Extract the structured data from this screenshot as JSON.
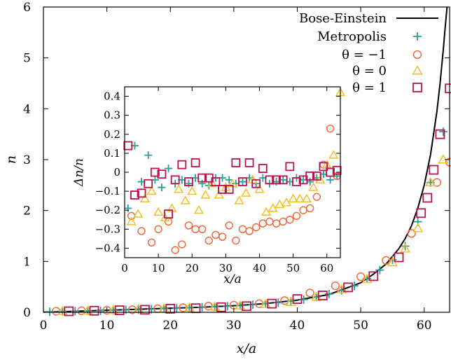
{
  "chart_data": [
    {
      "id": "main",
      "type": "scatter",
      "xlabel": "x/a",
      "ylabel": "n",
      "xlim": [
        0,
        64
      ],
      "ylim": [
        0,
        6
      ],
      "xticks": [
        0,
        10,
        20,
        30,
        40,
        50,
        60
      ],
      "yticks": [
        0,
        1,
        2,
        3,
        4,
        5,
        6
      ],
      "legend_position": "top-right",
      "legend": [
        {
          "label": "Bose-Einstein",
          "symbol": "line"
        },
        {
          "label": "Metropolis",
          "symbol": "plus"
        },
        {
          "label": "θ = −1",
          "symbol": "circle"
        },
        {
          "label": "θ = 0",
          "symbol": "triangle"
        },
        {
          "label": "θ = 1",
          "symbol": "square"
        }
      ],
      "series": [
        {
          "name": "Bose-Einstein",
          "kind": "line",
          "color": "#000000",
          "x": [
            0,
            5,
            10,
            15,
            20,
            25,
            30,
            35,
            40,
            45,
            50,
            52,
            54,
            56,
            57,
            58,
            59,
            60,
            61,
            62,
            62.5,
            63,
            63.3,
            63.6
          ],
          "y": [
            0.0,
            0.02,
            0.04,
            0.06,
            0.08,
            0.1,
            0.13,
            0.17,
            0.24,
            0.35,
            0.58,
            0.75,
            0.95,
            1.25,
            1.45,
            1.7,
            2.05,
            2.5,
            3.1,
            3.95,
            4.5,
            5.15,
            5.6,
            6.0
          ]
        },
        {
          "name": "Metropolis",
          "kind": "plus",
          "color": "#2a9d9a",
          "x": [
            1,
            3,
            5,
            7,
            9,
            11,
            13,
            15,
            17,
            19,
            21,
            23,
            25,
            27,
            29,
            31,
            33,
            35,
            37,
            39,
            41,
            43,
            45,
            47,
            49,
            51,
            53,
            55,
            57,
            59,
            61,
            63
          ],
          "y": [
            0.01,
            0.02,
            0.02,
            0.03,
            0.03,
            0.04,
            0.05,
            0.05,
            0.06,
            0.07,
            0.08,
            0.09,
            0.1,
            0.11,
            0.12,
            0.13,
            0.15,
            0.17,
            0.19,
            0.22,
            0.25,
            0.3,
            0.36,
            0.43,
            0.52,
            0.66,
            0.83,
            1.03,
            1.3,
            1.78,
            2.55,
            3.55
          ]
        },
        {
          "name": "θ = −1",
          "kind": "circle",
          "color": "#f26a3d",
          "x": [
            2,
            6,
            10,
            14,
            18,
            22,
            26,
            30,
            34,
            38,
            42,
            46,
            50,
            54,
            58,
            62,
            64
          ],
          "y": [
            0.02,
            0.03,
            0.04,
            0.05,
            0.07,
            0.09,
            0.12,
            0.14,
            0.17,
            0.23,
            0.38,
            0.52,
            0.7,
            1.02,
            1.55,
            2.55,
            2.95
          ]
        },
        {
          "name": "θ = 0",
          "kind": "triangle",
          "color": "#f2bf26",
          "x": [
            3,
            7,
            11,
            15,
            19,
            23,
            27,
            31,
            35,
            39,
            43,
            47,
            51,
            55,
            57,
            59,
            61,
            63
          ],
          "y": [
            0.02,
            0.03,
            0.04,
            0.06,
            0.07,
            0.09,
            0.11,
            0.13,
            0.16,
            0.2,
            0.3,
            0.45,
            0.65,
            0.98,
            1.25,
            1.65,
            2.55,
            3.0
          ]
        },
        {
          "name": "θ = 1",
          "kind": "square",
          "color": "#b8144d",
          "x": [
            4,
            8,
            12,
            16,
            20,
            24,
            28,
            32,
            36,
            40,
            44,
            48,
            52,
            56,
            59.5,
            60.5,
            61.5,
            62.5,
            64
          ],
          "y": [
            0.02,
            0.03,
            0.04,
            0.05,
            0.07,
            0.08,
            0.1,
            0.12,
            0.17,
            0.26,
            0.33,
            0.49,
            0.71,
            1.08,
            1.95,
            2.25,
            2.8,
            3.5,
            4.4
          ]
        }
      ]
    },
    {
      "id": "inset",
      "type": "scatter",
      "xlabel": "x/a",
      "ylabel": "Δn/n",
      "xlim": [
        0,
        64
      ],
      "ylim": [
        -0.45,
        0.45
      ],
      "xticks": [
        0,
        10,
        20,
        30,
        40,
        50,
        60
      ],
      "yticks": [
        -0.4,
        -0.3,
        -0.2,
        -0.1,
        0,
        0.1,
        0.2,
        0.3,
        0.4
      ],
      "ytick_labels": [
        "−0.4",
        "−0.3",
        "−0.2",
        "−0.1",
        "0",
        "0.1",
        "0.2",
        "0.3",
        "0.4"
      ],
      "series": [
        {
          "name": "Metropolis",
          "kind": "plus",
          "color": "#2a9d9a",
          "x": [
            1,
            3,
            5,
            7,
            9,
            11,
            13,
            15,
            17,
            19,
            21,
            23,
            25,
            27,
            29,
            31,
            33,
            35,
            37,
            39,
            41,
            43,
            45,
            47,
            49,
            51,
            53,
            55,
            57,
            59,
            61,
            63
          ],
          "y": [
            -0.19,
            0.14,
            -0.05,
            0.09,
            -0.04,
            -0.08,
            0.02,
            -0.06,
            -0.04,
            -0.06,
            -0.03,
            -0.06,
            -0.07,
            -0.03,
            -0.03,
            -0.04,
            -0.06,
            -0.05,
            -0.03,
            -0.06,
            -0.03,
            -0.06,
            -0.05,
            -0.04,
            -0.05,
            -0.03,
            -0.04,
            -0.05,
            -0.03,
            -0.01,
            -0.04,
            -0.02
          ]
        },
        {
          "name": "θ = −1",
          "kind": "circle",
          "color": "#f26a3d",
          "x": [
            2,
            5,
            8,
            10,
            13,
            15,
            17,
            19,
            21,
            23,
            25,
            27,
            29,
            31,
            33,
            35,
            37,
            39,
            41,
            43,
            45,
            47,
            49,
            51,
            53,
            55,
            57,
            59,
            61,
            63
          ],
          "y": [
            -0.23,
            -0.31,
            -0.37,
            -0.3,
            -0.26,
            -0.41,
            -0.38,
            -0.28,
            -0.3,
            -0.3,
            -0.36,
            -0.33,
            -0.34,
            -0.28,
            -0.36,
            -0.3,
            -0.31,
            -0.29,
            -0.27,
            -0.26,
            -0.27,
            -0.26,
            -0.25,
            -0.23,
            -0.2,
            -0.19,
            -0.13,
            0.04,
            0.23,
            -0.02
          ]
        },
        {
          "name": "θ = 0",
          "kind": "triangle",
          "color": "#f2bf26",
          "x": [
            2,
            4,
            6,
            8,
            10,
            12,
            14,
            16,
            18,
            20,
            22,
            24,
            26,
            28,
            30,
            32,
            34,
            36,
            38,
            40,
            42,
            44,
            46,
            48,
            50,
            52,
            54,
            56,
            58,
            60,
            62,
            64
          ],
          "y": [
            -0.26,
            -0.22,
            -0.14,
            -0.1,
            -0.21,
            -0.24,
            -0.19,
            -0.09,
            -0.15,
            -0.1,
            -0.2,
            -0.12,
            -0.06,
            -0.12,
            -0.08,
            -0.06,
            -0.15,
            -0.11,
            -0.04,
            -0.09,
            -0.21,
            -0.19,
            -0.17,
            -0.16,
            -0.14,
            -0.14,
            -0.14,
            -0.08,
            -0.04,
            0.04,
            0.09,
            0.42
          ]
        },
        {
          "name": "θ = 1",
          "kind": "square",
          "color": "#b8144d",
          "x": [
            1,
            3,
            5,
            7,
            9,
            11,
            13,
            15,
            17,
            19,
            21,
            23,
            25,
            27,
            29,
            31,
            33,
            35,
            37,
            39,
            41,
            43,
            45,
            47,
            49,
            51,
            53,
            55,
            57,
            59,
            61,
            63
          ],
          "y": [
            0.14,
            -0.12,
            -0.11,
            -0.06,
            0.0,
            -0.01,
            -0.22,
            -0.04,
            0.04,
            -0.05,
            0.05,
            -0.03,
            -0.03,
            -0.05,
            -0.09,
            -0.09,
            0.05,
            -0.05,
            0.05,
            -0.06,
            0.02,
            -0.04,
            -0.04,
            -0.04,
            0.03,
            -0.05,
            -0.04,
            -0.02,
            -0.02,
            0.03,
            0.0,
            0.01
          ]
        }
      ]
    }
  ]
}
